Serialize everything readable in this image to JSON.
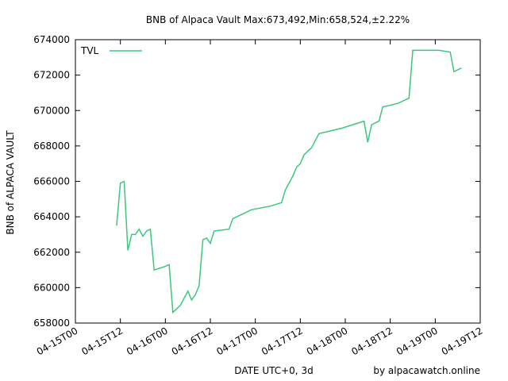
{
  "chart_data": {
    "type": "line",
    "title": "BNB of Alpaca Vault Max:673,492,Min:658,524,±2.22%",
    "x_label": "DATE UTC+0, 3d",
    "y_label": "BNB of ALPACA VAULT",
    "annotation": "by alpacawatch.online",
    "legend": "top-left",
    "x": [
      "04-15T11",
      "04-15T12",
      "04-15T13",
      "04-15T14",
      "04-15T15",
      "04-15T16",
      "04-15T17",
      "04-15T18",
      "04-15T19",
      "04-15T20",
      "04-15T21",
      "04-16T00",
      "04-16T01",
      "04-16T02",
      "04-16T04",
      "04-16T06",
      "04-16T07",
      "04-16T08",
      "04-16T09",
      "04-16T10",
      "04-16T11",
      "04-16T12",
      "04-16T13",
      "04-16T17",
      "04-16T18",
      "04-16T23",
      "04-17T04",
      "04-17T07",
      "04-17T08",
      "04-17T10",
      "04-17T11",
      "04-17T12",
      "04-17T13",
      "04-17T15",
      "04-17T17",
      "04-17T23",
      "04-18T05",
      "04-18T06",
      "04-18T07",
      "04-18T09",
      "04-18T10",
      "04-18T14",
      "04-18T17",
      "04-18T18",
      "04-19T01",
      "04-19T04",
      "04-19T05",
      "04-19T07"
    ],
    "series": [
      {
        "name": "TVL",
        "color": "#3cc77f",
        "values": [
          663500,
          665900,
          666000,
          662100,
          663000,
          663000,
          663300,
          662900,
          663200,
          663300,
          661000,
          661200,
          661300,
          658600,
          659000,
          659800,
          659300,
          659600,
          660100,
          662700,
          662800,
          662500,
          663200,
          663300,
          663900,
          664400,
          664600,
          664800,
          665500,
          666300,
          666800,
          667000,
          667500,
          667900,
          668700,
          669000,
          669400,
          668200,
          669200,
          669400,
          670200,
          670400,
          670700,
          673400,
          673400,
          673300,
          672200,
          672400
        ]
      }
    ],
    "xlim": [
      "04-15T00",
      "04-19T12"
    ],
    "xticks": [
      "04-15T00",
      "04-15T12",
      "04-16T00",
      "04-16T12",
      "04-17T00",
      "04-17T12",
      "04-18T00",
      "04-18T12",
      "04-19T00",
      "04-19T12"
    ],
    "ylim": [
      658000,
      674000
    ],
    "yticks": [
      658000,
      660000,
      662000,
      664000,
      666000,
      668000,
      670000,
      672000,
      674000
    ]
  }
}
